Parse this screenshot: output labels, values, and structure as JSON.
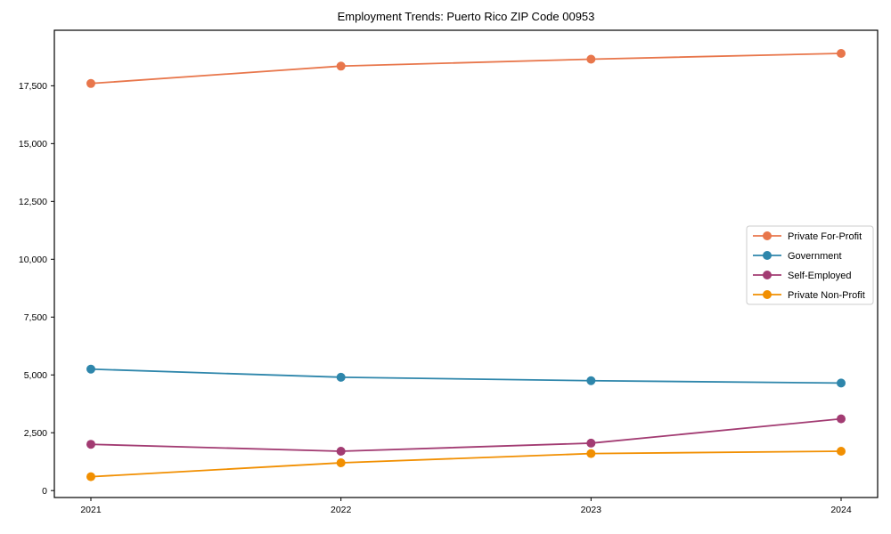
{
  "chart_data": {
    "type": "line",
    "title": "Employment Trends: Puerto Rico ZIP Code 00953",
    "xlabel": "",
    "ylabel": "",
    "x": [
      2021,
      2022,
      2023,
      2024
    ],
    "series": [
      {
        "name": "Private For-Profit",
        "color": "#E8764B",
        "values": [
          17600,
          18350,
          18650,
          18900
        ]
      },
      {
        "name": "Government",
        "color": "#2E86AB",
        "values": [
          5250,
          4900,
          4750,
          4650
        ]
      },
      {
        "name": "Self-Employed",
        "color": "#A23B72",
        "values": [
          2000,
          1700,
          2050,
          3100
        ]
      },
      {
        "name": "Private Non-Profit",
        "color": "#F18F01",
        "values": [
          600,
          1200,
          1600,
          1700
        ]
      }
    ],
    "yticks": [
      0,
      2500,
      5000,
      7500,
      10000,
      12500,
      15000,
      17500
    ],
    "ytick_labels": [
      "0",
      "2,500",
      "5,000",
      "7,500",
      "10,000",
      "12,500",
      "15,000",
      "17,500"
    ],
    "xtick_labels": [
      "2021",
      "2022",
      "2023",
      "2024"
    ],
    "ylim": [
      -300,
      19900
    ],
    "grid": false,
    "legend_position": "center right",
    "marker": "circle",
    "axis_color": "#000000",
    "legend_border_color": "#cccccc",
    "legend_background": "#ffffff"
  }
}
